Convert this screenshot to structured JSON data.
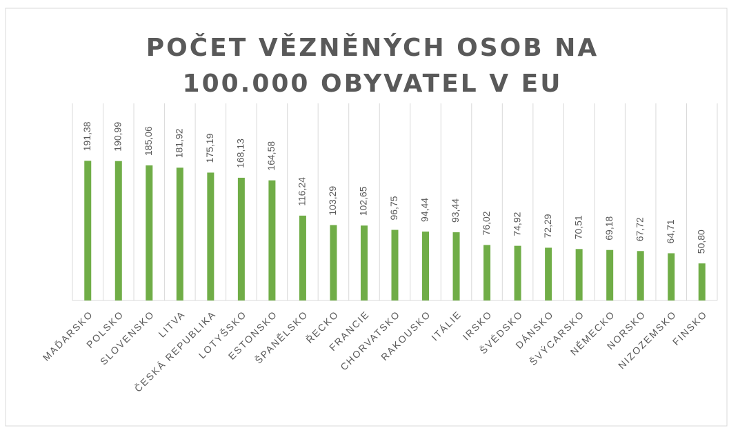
{
  "chart_data": {
    "type": "bar",
    "title": "POČET VĚZNĚNÝCH OSOB NA 100.000 OBYVATEL V EU",
    "categories": [
      "MAĎARSKO",
      "POLSKO",
      "SLOVENSKO",
      "LITVA",
      "ČESKÁ REPUBLIKA",
      "LOTYŠSKO",
      "ESTONSKO",
      "ŠPANĚLSKO",
      "ŘECKO",
      "FRANCIE",
      "CHORVATSKO",
      "RAKOUSKO",
      "ITÁLIE",
      "IRSKO",
      "ŠVÉDSKO",
      "DÁNSKO",
      "ŠVÝCARSKO",
      "NĚMECKO",
      "NORSKO",
      "NIZOZEMSKO",
      "FINSKO"
    ],
    "values": [
      191.38,
      190.99,
      185.06,
      181.92,
      175.19,
      168.13,
      164.58,
      116.24,
      103.29,
      102.65,
      96.75,
      94.44,
      93.44,
      76.02,
      74.92,
      72.29,
      70.51,
      69.18,
      67.72,
      64.71,
      50.8
    ],
    "value_labels": [
      "191,38",
      "190,99",
      "185,06",
      "181,92",
      "175,19",
      "168,13",
      "164,58",
      "116,24",
      "103,29",
      "102,65",
      "96,75",
      "94,44",
      "93,44",
      "76,02",
      "74,92",
      "72,29",
      "70,51",
      "69,18",
      "67,72",
      "64,71",
      "50,80"
    ],
    "color": "#70ad47",
    "ylim": [
      0,
      270
    ]
  }
}
